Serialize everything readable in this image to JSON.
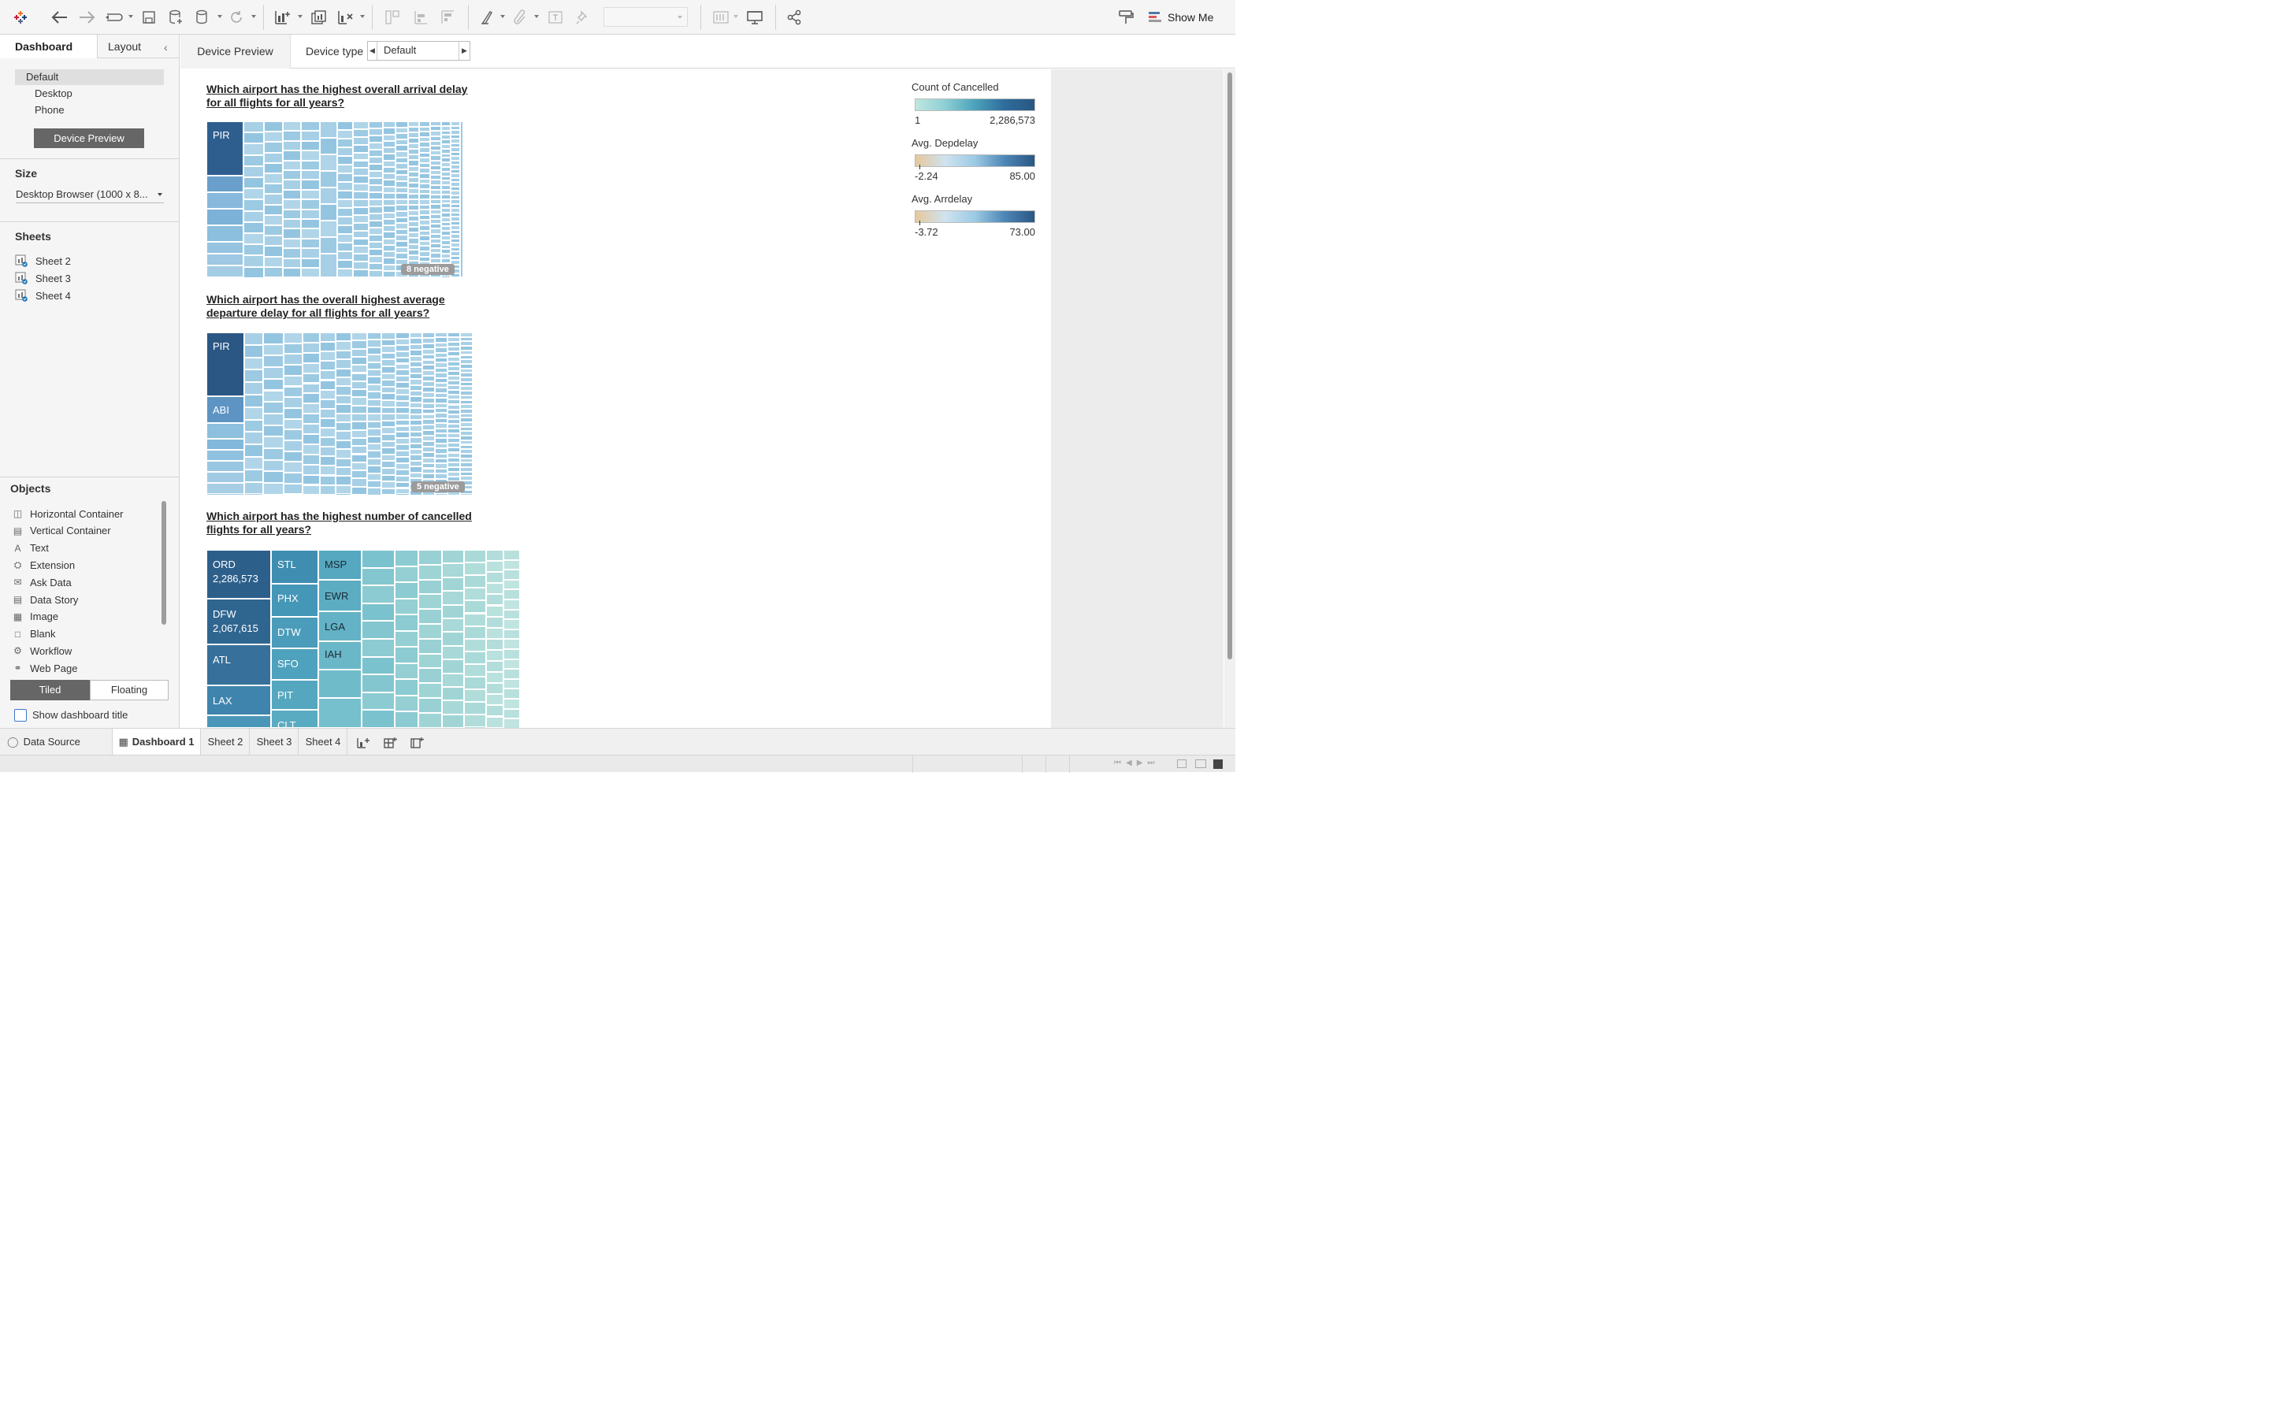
{
  "app": {
    "logo": "tableau-logo-icon",
    "show_me": "Show Me"
  },
  "colors": {
    "accent_blue": "#2a5783",
    "light_blue": "#9ccae3",
    "teal": "#49a2b7",
    "mint": "#a9dad8"
  },
  "sidebar": {
    "tabs": [
      "Dashboard",
      "Layout"
    ],
    "devices": [
      "Default",
      "Desktop",
      "Phone"
    ],
    "device_preview_button": "Device Preview",
    "size_heading": "Size",
    "size_value": "Desktop Browser (1000 x 8...",
    "sheets_heading": "Sheets",
    "sheets": [
      "Sheet 2",
      "Sheet 3",
      "Sheet 4"
    ],
    "objects_heading": "Objects",
    "objects": [
      {
        "label": "Horizontal Container",
        "icon": "horizontal-container-icon"
      },
      {
        "label": "Vertical Container",
        "icon": "vertical-container-icon"
      },
      {
        "label": "Text",
        "icon": "text-icon"
      },
      {
        "label": "Extension",
        "icon": "extension-icon"
      },
      {
        "label": "Ask Data",
        "icon": "ask-data-icon"
      },
      {
        "label": "Data Story",
        "icon": "data-story-icon"
      },
      {
        "label": "Image",
        "icon": "image-icon"
      },
      {
        "label": "Blank",
        "icon": "blank-icon"
      },
      {
        "label": "Workflow",
        "icon": "workflow-icon"
      },
      {
        "label": "Web Page",
        "icon": "web-page-icon"
      }
    ],
    "tiled": "Tiled",
    "floating": "Floating",
    "show_title": "Show dashboard title"
  },
  "preview": {
    "tab": "Device Preview",
    "device_type_label": "Device type",
    "device_type_value": "Default"
  },
  "dashboard": {
    "q1": "Which airport has the highest overall arrival delay for all flights for all years?",
    "q2": "Which airport has the overall highest average departure delay for all flights for all years?",
    "q3": "Which airport has the highest number of cancelled flights for all years?",
    "neg1": "8 negative",
    "neg2": "5 negative",
    "tm1_labels": [
      "PIR"
    ],
    "tm2_labels": [
      "PIR",
      "ABI"
    ],
    "tm3_labels": [
      {
        "name": "ORD",
        "value": "2,286,573"
      },
      {
        "name": "DFW",
        "value": "2,067,615"
      },
      {
        "name": "ATL"
      },
      {
        "name": "LAX"
      },
      {
        "name": "STL"
      },
      {
        "name": "PHX"
      },
      {
        "name": "DTW"
      },
      {
        "name": "SFO"
      },
      {
        "name": "PIT"
      },
      {
        "name": "CLT"
      },
      {
        "name": "MSP"
      },
      {
        "name": "EWR"
      },
      {
        "name": "LGA"
      },
      {
        "name": "IAH"
      }
    ]
  },
  "legends": [
    {
      "title": "Count of Cancelled",
      "min": "1",
      "max": "2,286,573"
    },
    {
      "title": "Avg. Depdelay",
      "min": "-2.24",
      "max": "85.00"
    },
    {
      "title": "Avg. Arrdelay",
      "min": "-3.72",
      "max": "73.00"
    }
  ],
  "bottom_tabs": {
    "data_source": "Data Source",
    "tabs": [
      "Dashboard 1",
      "Sheet 2",
      "Sheet 3",
      "Sheet 4"
    ],
    "active": "Dashboard 1"
  }
}
